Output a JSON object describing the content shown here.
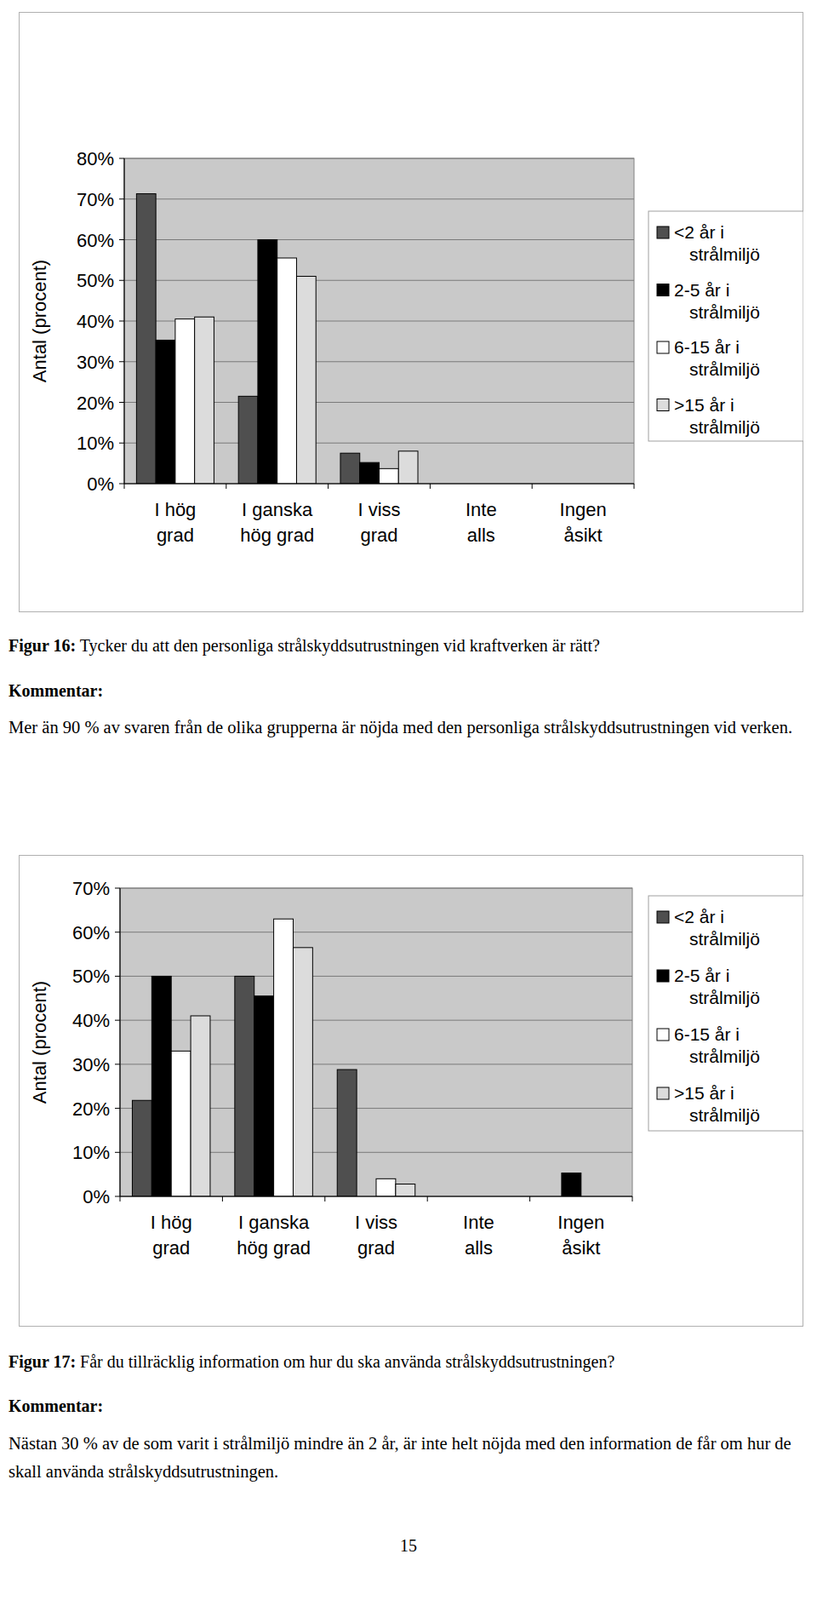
{
  "chart_data": [
    {
      "type": "bar",
      "ylabel": "Antal (procent)",
      "categories": [
        "I hög grad",
        "I ganska hög grad",
        "I viss grad",
        "Inte alls",
        "Ingen åsikt"
      ],
      "series": [
        {
          "name": "<2 år i strålmiljö",
          "color": "#4f4f4f",
          "values": [
            71.3,
            21.5,
            7.5,
            0,
            0
          ]
        },
        {
          "name": "2-5 år i strålmiljö",
          "color": "#000000",
          "values": [
            35.3,
            60,
            5.2,
            0,
            0
          ]
        },
        {
          "name": "6-15 år i strålmiljö",
          "color": "#ffffff",
          "values": [
            40.5,
            55.5,
            3.7,
            0,
            0
          ]
        },
        {
          "name": ">15 år i strålmiljö",
          "color": "#dcdcdc",
          "values": [
            41,
            51,
            8,
            0,
            0
          ]
        }
      ],
      "ylim": [
        0,
        80
      ],
      "yticks": [
        {
          "value": 0,
          "label": "0%"
        },
        {
          "value": 10,
          "label": "10%"
        },
        {
          "value": 20,
          "label": "20%"
        },
        {
          "value": 30,
          "label": "30%"
        },
        {
          "value": 40,
          "label": "40%"
        },
        {
          "value": 50,
          "label": "50%"
        },
        {
          "value": 60,
          "label": "60%"
        },
        {
          "value": 70,
          "label": "70%"
        },
        {
          "value": 80,
          "label": "80%"
        }
      ],
      "grid": true,
      "legend": "right"
    },
    {
      "type": "bar",
      "ylabel": "Antal (procent)",
      "categories": [
        "I hög grad",
        "I ganska hög grad",
        "I viss grad",
        "Inte alls",
        "Ingen åsikt"
      ],
      "series": [
        {
          "name": "<2 år i strålmiljö",
          "color": "#4f4f4f",
          "values": [
            21.8,
            50,
            28.8,
            0,
            0
          ]
        },
        {
          "name": "2-5 år i strålmiljö",
          "color": "#000000",
          "values": [
            50,
            45.5,
            0,
            0,
            5.3
          ]
        },
        {
          "name": "6-15 år i strålmiljö",
          "color": "#ffffff",
          "values": [
            33,
            63,
            4,
            0,
            0
          ]
        },
        {
          "name": ">15 år i strålmiljö",
          "color": "#dcdcdc",
          "values": [
            41,
            56.5,
            2.8,
            0,
            0
          ]
        }
      ],
      "ylim": [
        0,
        70
      ],
      "yticks": [
        {
          "value": 0,
          "label": "0%"
        },
        {
          "value": 10,
          "label": "10%"
        },
        {
          "value": 20,
          "label": "20%"
        },
        {
          "value": 30,
          "label": "30%"
        },
        {
          "value": 40,
          "label": "40%"
        },
        {
          "value": 50,
          "label": "50%"
        },
        {
          "value": 60,
          "label": "60%"
        },
        {
          "value": 70,
          "label": "70%"
        }
      ],
      "grid": true,
      "legend": "right"
    }
  ],
  "figures": [
    {
      "label": "Figur 16:",
      "caption": "Tycker du att den personliga strålskyddsutrustningen vid kraftverken är rätt?",
      "comment_heading": "Kommentar:",
      "comment": "Mer än 90 % av svaren från de olika grupperna är nöjda med den personliga strålskyddsutrustningen vid verken."
    },
    {
      "label": "Figur 17:",
      "caption": "Får du tillräcklig information om hur du ska använda strålskyddsutrustningen?",
      "comment_heading": "Kommentar:",
      "comment": "Nästan 30 % av de som varit i strålmiljö mindre än 2 år, är inte helt nöjda med den information de får om hur de skall använda strålskyddsutrustningen."
    }
  ],
  "page_number": 15
}
